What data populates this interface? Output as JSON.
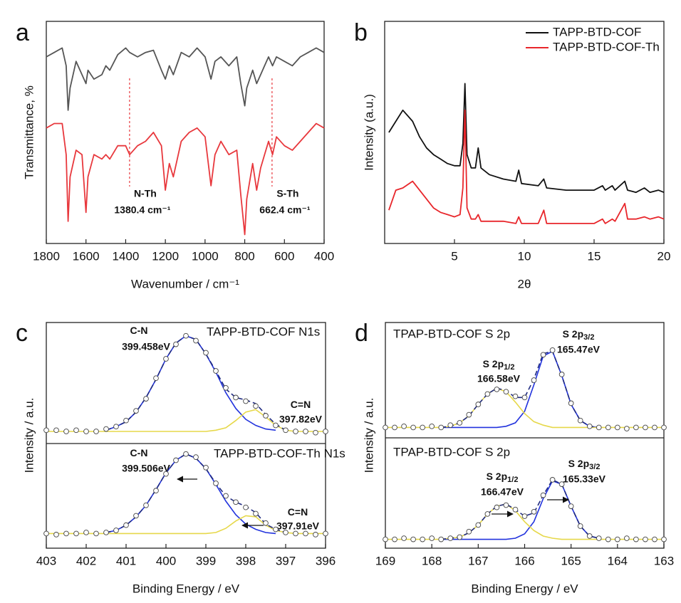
{
  "chart_data": [
    {
      "type": "line",
      "panel": "a",
      "xlabel": "Wavenumber / cm⁻¹",
      "ylabel": "Transmittance, %",
      "xlim": [
        1800,
        400
      ],
      "xticks": [
        1800,
        1600,
        1400,
        1200,
        1000,
        800,
        600,
        400
      ],
      "ylim": [
        0,
        100
      ],
      "x": [
        1800,
        1760,
        1720,
        1700,
        1690,
        1680,
        1650,
        1620,
        1600,
        1590,
        1560,
        1520,
        1500,
        1480,
        1440,
        1400,
        1380,
        1340,
        1300,
        1260,
        1220,
        1200,
        1180,
        1160,
        1120,
        1080,
        1040,
        1000,
        970,
        950,
        920,
        880,
        840,
        820,
        800,
        790,
        760,
        740,
        720,
        700,
        680,
        660,
        640,
        600,
        560,
        520,
        480,
        440,
        400
      ],
      "series": [
        {
          "color": "#555555",
          "values": [
            84,
            86,
            88,
            80,
            60,
            70,
            82,
            76,
            72,
            78,
            74,
            76,
            80,
            78,
            85,
            88,
            86,
            84,
            86,
            87,
            78,
            74,
            80,
            76,
            86,
            84,
            88,
            84,
            74,
            82,
            84,
            80,
            84,
            72,
            62,
            70,
            78,
            72,
            76,
            80,
            84,
            80,
            84,
            82,
            80,
            84,
            86,
            88,
            86
          ]
        },
        {
          "color": "#e8383d",
          "values": [
            52,
            54,
            54,
            40,
            10,
            30,
            42,
            40,
            14,
            30,
            40,
            38,
            40,
            38,
            44,
            44,
            40,
            44,
            46,
            50,
            44,
            24,
            36,
            30,
            46,
            50,
            52,
            48,
            26,
            40,
            46,
            40,
            42,
            22,
            4,
            20,
            36,
            24,
            34,
            40,
            46,
            40,
            48,
            44,
            42,
            46,
            50,
            54,
            52
          ]
        }
      ],
      "annotations": [
        {
          "x": 1380.4,
          "text": "N-Th",
          "label": "1380.4 cm⁻¹",
          "color": "#e8383d"
        },
        {
          "x": 662.4,
          "text": "S-Th",
          "label": "662.4 cm⁻¹",
          "color": "#e8383d"
        }
      ]
    },
    {
      "type": "line",
      "panel": "b",
      "xlabel": "2θ",
      "ylabel": "Intensity (a.u.)",
      "xlim": [
        0,
        20
      ],
      "xticks": [
        5,
        10,
        15,
        20
      ],
      "ylim": [
        0,
        100
      ],
      "legend": "upper right",
      "x": [
        0.3,
        0.8,
        1.3,
        2,
        2.5,
        3,
        3.5,
        4,
        4.5,
        5,
        5.4,
        5.6,
        5.75,
        5.9,
        6.2,
        6.5,
        6.7,
        6.9,
        7.5,
        8.5,
        9.4,
        9.6,
        9.8,
        11,
        11.4,
        11.6,
        13,
        14,
        15,
        15.6,
        15.8,
        16.3,
        16.5,
        17.2,
        17.4,
        18,
        18.6,
        19,
        19.6,
        20
      ],
      "series": [
        {
          "name": "TAPP-BTD-COF",
          "color": "#111111",
          "values": [
            50,
            55,
            60,
            55,
            48,
            43,
            40,
            38,
            36,
            35,
            35,
            45,
            72,
            40,
            34,
            34,
            43,
            34,
            31,
            29,
            28,
            33,
            27,
            26,
            29,
            25,
            24,
            24,
            24,
            26,
            24,
            26,
            24,
            28,
            24,
            23,
            25,
            23,
            24,
            23
          ]
        },
        {
          "name": "TAPP-BTD-COF-Th",
          "color": "#e8262b",
          "values": [
            15,
            24,
            25,
            28,
            24,
            20,
            16,
            14,
            13,
            12,
            13,
            25,
            60,
            16,
            11,
            11,
            13,
            10,
            10,
            10,
            9,
            12,
            9,
            9,
            15,
            9,
            9,
            9,
            9,
            11,
            9,
            11,
            10,
            18,
            11,
            11,
            12,
            11,
            12,
            11
          ]
        }
      ]
    },
    {
      "type": "xps",
      "panel": "c",
      "xlabel": "Binding Energy / eV",
      "ylabel": "Intensity / a.u.",
      "xlim": [
        403,
        396
      ],
      "xticks": [
        403,
        402,
        401,
        400,
        399,
        398,
        397,
        396
      ],
      "envelope_color": "#1f2a80",
      "x": [
        403,
        402.75,
        402.5,
        402.25,
        402,
        401.75,
        401.5,
        401.25,
        401,
        400.75,
        400.5,
        400.25,
        400,
        399.75,
        399.5,
        399.25,
        399,
        398.75,
        398.5,
        398.25,
        398,
        397.75,
        397.5,
        397.25,
        397,
        396.75,
        396.5,
        396.25,
        396
      ],
      "panels": [
        {
          "title": "TAPP-BTD-COF N1s",
          "ylim": [
            0,
            100
          ],
          "points": [
            11,
            11,
            10,
            11,
            10,
            10,
            12,
            14,
            19,
            27,
            37,
            54,
            70,
            82,
            89,
            85,
            75,
            60,
            46,
            38,
            35,
            31,
            23,
            15,
            11,
            10,
            10,
            9,
            10
          ],
          "envelope": [
            null,
            null,
            null,
            null,
            null,
            null,
            11,
            14,
            18,
            26,
            38,
            53,
            70,
            83,
            89,
            86,
            74,
            60,
            45,
            38,
            36,
            33,
            24,
            16,
            11,
            null,
            null,
            null,
            null
          ],
          "components": [
            {
              "name": "C-N",
              "label": "399.458eV",
              "color": "#2233dd",
              "values": [
                null,
                null,
                null,
                null,
                null,
                null,
                11,
                14,
                18,
                26,
                38,
                53,
                70,
                83,
                89,
                86,
                74,
                59,
                42,
                29,
                20,
                15,
                12,
                11,
                null,
                null,
                null,
                null,
                null
              ]
            },
            {
              "name": "C=N",
              "label": "397.82eV",
              "color": "#e6d84a",
              "values": [
                10,
                10,
                10,
                10,
                10,
                10,
                10,
                10,
                10,
                10,
                10,
                10,
                10,
                10,
                10,
                10,
                10,
                11,
                13,
                19,
                26,
                28,
                22,
                15,
                11,
                10,
                10,
                10,
                10
              ]
            }
          ]
        },
        {
          "title": "TAPP-BTD-COF-Th N1s",
          "ylim": [
            0,
            100
          ],
          "points": [
            14,
            13,
            14,
            14,
            15,
            14,
            15,
            17,
            22,
            31,
            41,
            55,
            71,
            84,
            90,
            87,
            77,
            62,
            50,
            44,
            39,
            33,
            24,
            18,
            15,
            14,
            14,
            13,
            14
          ],
          "envelope": [
            null,
            null,
            null,
            null,
            null,
            null,
            15,
            17,
            22,
            30,
            41,
            56,
            72,
            84,
            90,
            86,
            76,
            62,
            50,
            44,
            40,
            34,
            23,
            18,
            15,
            null,
            null,
            null,
            null
          ],
          "components": [
            {
              "name": "C-N",
              "label": "399.506eV",
              "color": "#2233dd",
              "values": [
                null,
                null,
                null,
                null,
                null,
                null,
                15,
                17,
                22,
                30,
                41,
                56,
                72,
                84,
                90,
                86,
                76,
                61,
                45,
                32,
                23,
                18,
                15,
                14,
                null,
                null,
                null,
                null,
                null
              ]
            },
            {
              "name": "C=N",
              "label": "397.91eV",
              "color": "#e6d84a",
              "values": [
                14,
                14,
                14,
                14,
                14,
                14,
                14,
                14,
                14,
                14,
                14,
                14,
                14,
                14,
                14,
                14,
                14,
                15,
                19,
                26,
                31,
                30,
                22,
                17,
                15,
                14,
                14,
                14,
                14
              ]
            }
          ]
        }
      ]
    },
    {
      "type": "xps",
      "panel": "d",
      "xlabel": "Binding Energy / eV",
      "ylabel": "Intensity / a.u.",
      "xlim": [
        169,
        163
      ],
      "xticks": [
        169,
        168,
        167,
        166,
        165,
        164,
        163
      ],
      "envelope_color": "#1f2a80",
      "x": [
        169,
        168.8,
        168.6,
        168.4,
        168.2,
        168,
        167.8,
        167.6,
        167.4,
        167.2,
        167,
        166.8,
        166.6,
        166.4,
        166.2,
        166,
        165.8,
        165.6,
        165.4,
        165.2,
        165,
        164.8,
        164.6,
        164.4,
        164.2,
        164,
        163.8,
        163.6,
        163.4,
        163.2,
        163
      ],
      "panels": [
        {
          "title": "TPAP-BTD-COF S 2p",
          "ylim": [
            0,
            100
          ],
          "points": [
            9,
            9,
            10,
            9,
            9,
            10,
            9,
            11,
            13,
            20,
            29,
            38,
            42,
            40,
            36,
            35,
            50,
            72,
            76,
            55,
            30,
            15,
            10,
            9,
            9,
            9,
            8,
            9,
            9,
            9,
            9
          ],
          "envelope": [
            null,
            null,
            null,
            null,
            null,
            null,
            9,
            10,
            13,
            19,
            29,
            38,
            43,
            41,
            35,
            35,
            51,
            73,
            75,
            54,
            29,
            15,
            10,
            9,
            null,
            null,
            null,
            null,
            null,
            null,
            null
          ],
          "components": [
            {
              "name": "S 2p",
              "subscript": "3/2",
              "label": "165.47eV",
              "color": "#2233dd",
              "values": [
                null,
                null,
                null,
                null,
                null,
                null,
                9,
                9,
                9,
                9,
                9,
                9,
                9,
                10,
                13,
                23,
                46,
                71,
                75,
                54,
                29,
                15,
                10,
                9,
                null,
                null,
                null,
                null,
                null,
                null,
                null
              ]
            },
            {
              "name": "S 2p",
              "subscript": "1/2",
              "label": "166.58eV",
              "color": "#e6d84a",
              "values": [
                9,
                9,
                9,
                9,
                9,
                9,
                9,
                10,
                13,
                19,
                29,
                38,
                43,
                40,
                31,
                21,
                14,
                11,
                9,
                9,
                9,
                9,
                9,
                9,
                9,
                9,
                9,
                9,
                9,
                9,
                9
              ]
            }
          ]
        },
        {
          "title": "TPAP-BTD-COF S 2p",
          "ylim": [
            0,
            100
          ],
          "points": [
            8,
            8,
            9,
            8,
            8,
            9,
            8,
            9,
            10,
            15,
            21,
            31,
            37,
            39,
            35,
            29,
            33,
            48,
            62,
            58,
            38,
            20,
            11,
            9,
            8,
            8,
            9,
            8,
            8,
            8,
            8
          ],
          "envelope": [
            null,
            null,
            null,
            null,
            null,
            null,
            8,
            9,
            10,
            14,
            21,
            31,
            38,
            40,
            35,
            29,
            32,
            48,
            62,
            58,
            38,
            20,
            11,
            9,
            null,
            null,
            null,
            null,
            null,
            null,
            null
          ],
          "components": [
            {
              "name": "S 2p",
              "subscript": "3/2",
              "label": "165.33eV",
              "color": "#2233dd",
              "values": [
                null,
                null,
                null,
                null,
                null,
                null,
                8,
                8,
                8,
                8,
                8,
                8,
                8,
                8,
                9,
                13,
                24,
                45,
                61,
                58,
                38,
                20,
                11,
                9,
                null,
                null,
                null,
                null,
                null,
                null,
                null
              ]
            },
            {
              "name": "S 2p",
              "subscript": "1/2",
              "label": "166.47eV",
              "color": "#e6d84a",
              "values": [
                8,
                8,
                8,
                8,
                8,
                8,
                8,
                9,
                10,
                14,
                21,
                31,
                38,
                40,
                34,
                24,
                16,
                11,
                9,
                8,
                8,
                8,
                8,
                8,
                8,
                8,
                8,
                8,
                8,
                8,
                8
              ]
            }
          ]
        }
      ]
    }
  ]
}
